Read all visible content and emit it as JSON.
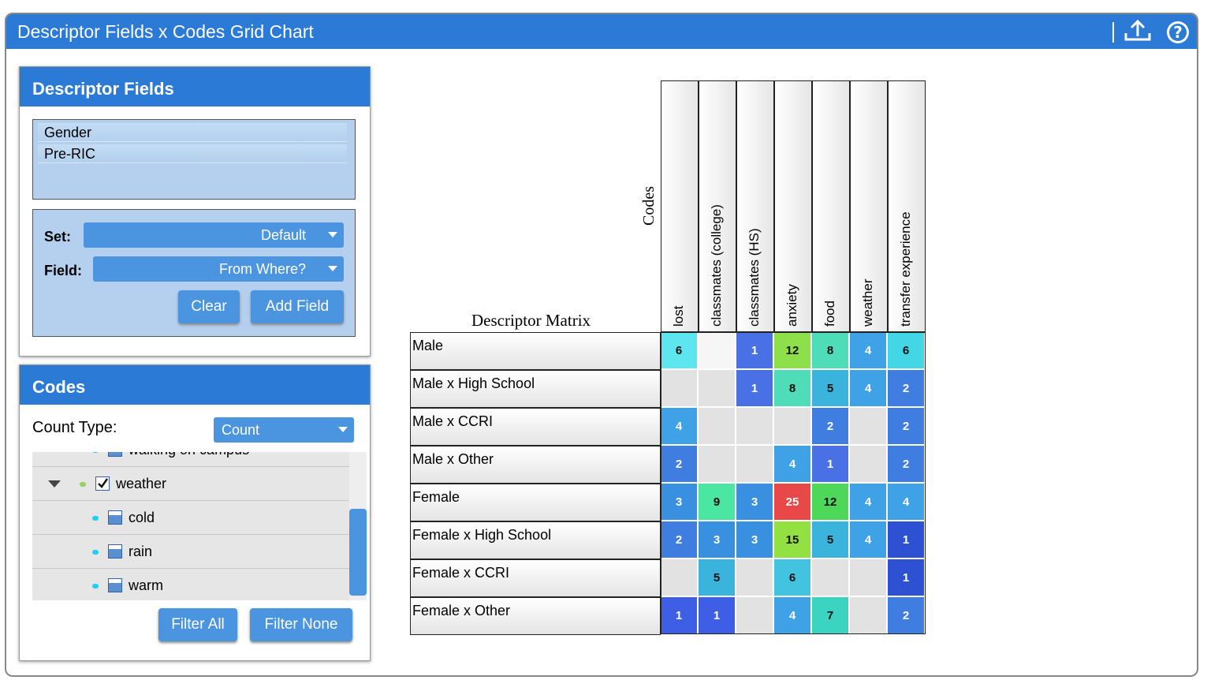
{
  "header": {
    "title": "Descriptor Fields x Codes Grid Chart"
  },
  "descriptor_panel": {
    "title": "Descriptor Fields",
    "fields": [
      "Gender",
      "Pre-RIC"
    ],
    "set_label": "Set:",
    "set_value": "Default",
    "field_label": "Field:",
    "field_value": "From Where?",
    "buttons": [
      "Clear",
      "Add Field"
    ]
  },
  "codes_panel": {
    "title": "Codes",
    "count_type_label": "Count Type:",
    "count_type_value": "Count",
    "tree": [
      {
        "label": "walking on campus",
        "level": 1
      },
      {
        "label": "weather",
        "level": 0,
        "checked": true
      },
      {
        "label": "cold",
        "level": 1
      },
      {
        "label": "rain",
        "level": 1
      },
      {
        "label": "warm",
        "level": 1
      }
    ],
    "buttons": [
      "Filter All",
      "Filter None"
    ]
  },
  "grid": {
    "corner_top": "Codes",
    "corner_bottom": "Descriptor Matrix",
    "columns": [
      "lost",
      "classmates (college)",
      "classmates (HS)",
      "anxiety",
      "food",
      "weather",
      "transfer experience"
    ],
    "rows": [
      "Male",
      "Male x High School",
      "Male x CCRI",
      "Male x Other",
      "Female",
      "Female x High School",
      "Female x CCRI",
      "Female x Other"
    ],
    "values": [
      [
        6,
        null,
        1,
        12,
        8,
        4,
        6
      ],
      [
        null,
        null,
        1,
        8,
        5,
        4,
        2
      ],
      [
        4,
        null,
        null,
        null,
        2,
        null,
        2
      ],
      [
        2,
        null,
        null,
        4,
        1,
        null,
        2
      ],
      [
        3,
        9,
        3,
        25,
        12,
        4,
        4
      ],
      [
        2,
        3,
        3,
        15,
        5,
        4,
        1
      ],
      [
        null,
        5,
        null,
        6,
        null,
        null,
        1
      ],
      [
        1,
        1,
        null,
        4,
        7,
        null,
        2
      ]
    ],
    "colors": [
      [
        "#5ee6f0",
        null,
        "#4a70e6",
        "#8ee04a",
        "#4fdcb8",
        "#3fa2e6",
        "#42d6e6"
      ],
      [
        null,
        null,
        "#4a70e6",
        "#4fdcb8",
        "#3ab4dc",
        "#3fa2e6",
        "#3f7ee0"
      ],
      [
        "#3fa2e6",
        null,
        null,
        null,
        "#3f7ee0",
        null,
        "#3f7ee0"
      ],
      [
        "#3f7ee0",
        null,
        null,
        "#3fa2e6",
        "#4a70e6",
        null,
        "#3f7ee0"
      ],
      [
        "#3a90e0",
        "#4ae6a2",
        "#3a90e0",
        "#e84848",
        "#4ed85a",
        "#3fa2e6",
        "#3fa2e6"
      ],
      [
        "#3f7ee0",
        "#3a90e0",
        "#3a90e0",
        "#92e042",
        "#3ab4dc",
        "#3fa2e6",
        "#2e50d2"
      ],
      [
        null,
        "#3ab4dc",
        null,
        "#42c4e0",
        null,
        null,
        "#2e50d2"
      ],
      [
        "#3e5ee6",
        "#3e5ee6",
        null,
        "#3fa2e6",
        "#3ad4c0",
        null,
        "#3f7ee0"
      ]
    ]
  }
}
